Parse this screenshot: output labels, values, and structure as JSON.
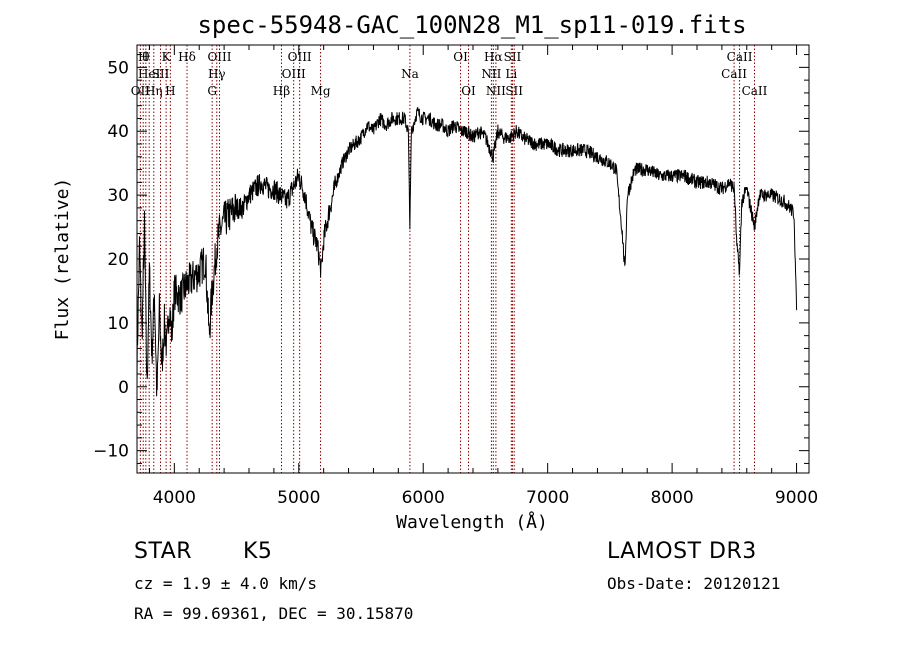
{
  "chart_data": {
    "type": "line",
    "title": "spec-55948-GAC_100N28_M1_sp11-019.fits",
    "xlabel": "Wavelength (Å)",
    "ylabel": "Flux (relative)",
    "xlim": [
      3700,
      9100
    ],
    "ylim": [
      -13.5,
      53.5
    ],
    "xticks": [
      4000,
      5000,
      6000,
      7000,
      8000,
      9000
    ],
    "yticks": [
      -10,
      0,
      10,
      20,
      30,
      40,
      50
    ],
    "grid": false,
    "series": [
      {
        "name": "spectrum",
        "x": [
          3700,
          3720,
          3740,
          3760,
          3780,
          3800,
          3820,
          3840,
          3860,
          3880,
          3900,
          3920,
          3940,
          3960,
          3980,
          4000,
          4050,
          4100,
          4150,
          4200,
          4250,
          4280,
          4300,
          4320,
          4340,
          4360,
          4400,
          4450,
          4500,
          4550,
          4600,
          4650,
          4700,
          4750,
          4800,
          4850,
          4900,
          4950,
          5000,
          5050,
          5100,
          5150,
          5180,
          5200,
          5250,
          5300,
          5350,
          5400,
          5450,
          5500,
          5550,
          5600,
          5650,
          5700,
          5750,
          5800,
          5850,
          5880,
          5893,
          5905,
          5950,
          6000,
          6050,
          6100,
          6150,
          6200,
          6250,
          6300,
          6350,
          6400,
          6450,
          6500,
          6563,
          6600,
          6650,
          6700,
          6750,
          6800,
          6900,
          7000,
          7100,
          7200,
          7300,
          7400,
          7500,
          7550,
          7600,
          7620,
          7640,
          7700,
          7800,
          7900,
          8000,
          8100,
          8200,
          8300,
          8400,
          8460,
          8500,
          8520,
          8542,
          8560,
          8600,
          8662,
          8700,
          8800,
          8900,
          8950,
          8980,
          9000
        ],
        "values": [
          3,
          22,
          8,
          25,
          0,
          18,
          5,
          15,
          -2,
          12,
          3,
          10,
          6,
          13,
          8,
          15,
          14,
          16,
          17,
          18,
          20,
          8,
          14,
          18,
          22,
          24,
          26,
          27,
          28,
          28,
          30,
          31,
          32,
          31,
          31,
          30,
          29,
          31,
          33,
          30,
          25,
          22,
          18,
          23,
          28,
          32,
          35,
          37,
          38,
          39,
          41,
          40,
          42,
          41,
          42,
          42,
          42,
          40,
          25,
          40,
          43,
          42,
          42,
          41,
          41,
          40,
          41,
          40,
          40,
          39,
          40,
          39,
          36,
          40,
          39,
          39,
          40,
          39,
          38,
          38,
          37,
          37,
          37,
          36,
          35,
          34,
          24,
          18,
          30,
          34,
          34,
          33,
          33,
          33,
          32,
          32,
          31,
          32,
          31,
          22,
          18,
          29,
          31,
          25,
          30,
          30,
          29,
          28,
          27,
          12
        ]
      }
    ],
    "spectral_lines": [
      {
        "wl": 3727,
        "label": "OII",
        "row": 2
      },
      {
        "wl": 3750,
        "label": "H",
        "row": 0
      },
      {
        "wl": 3771,
        "label": "θ",
        "row": 0
      },
      {
        "wl": 3798,
        "label": "HeI",
        "row": 1
      },
      {
        "wl": 3835,
        "label": "Hη",
        "row": 2
      },
      {
        "wl": 3889,
        "label": "SII",
        "row": 1
      },
      {
        "wl": 3934,
        "label": "K",
        "row": 0
      },
      {
        "wl": 3968,
        "label": "H",
        "row": 2
      },
      {
        "wl": 4102,
        "label": "Hδ",
        "row": 0
      },
      {
        "wl": 4304,
        "label": "G",
        "row": 2
      },
      {
        "wl": 4341,
        "label": "Hγ",
        "row": 1
      },
      {
        "wl": 4363,
        "label": "OIII",
        "row": 0
      },
      {
        "wl": 4861,
        "label": "Hβ",
        "row": 2
      },
      {
        "wl": 4959,
        "label": "OIII",
        "row": 1
      },
      {
        "wl": 5007,
        "label": "OIII",
        "row": 0
      },
      {
        "wl": 5175,
        "label": "Mg",
        "row": 2
      },
      {
        "wl": 5893,
        "label": "Na",
        "row": 1
      },
      {
        "wl": 6300,
        "label": "OI",
        "row": 0
      },
      {
        "wl": 6364,
        "label": "OI",
        "row": 2
      },
      {
        "wl": 6548,
        "label": "NII",
        "row": 1
      },
      {
        "wl": 6563,
        "label": "Hα",
        "row": 0
      },
      {
        "wl": 6584,
        "label": "NII",
        "row": 2
      },
      {
        "wl": 6708,
        "label": "Li",
        "row": 1
      },
      {
        "wl": 6717,
        "label": "SII",
        "row": 0
      },
      {
        "wl": 6731,
        "label": "SII",
        "row": 2
      },
      {
        "wl": 8498,
        "label": "CaII",
        "row": 1
      },
      {
        "wl": 8542,
        "label": "CaII",
        "row": 0
      },
      {
        "wl": 8662,
        "label": "CaII",
        "row": 2
      }
    ]
  },
  "info": {
    "object_class": "STAR",
    "subclass": "K5",
    "survey": "LAMOST DR3",
    "cz": "cz = 1.9 ± 4.0 km/s",
    "obs_date": "Obs-Date: 20120121",
    "coords": "RA =  99.69361, DEC =  30.15870"
  },
  "colors": {
    "line": "#000000",
    "marker": "#8b0000",
    "background": "#ffffff"
  }
}
